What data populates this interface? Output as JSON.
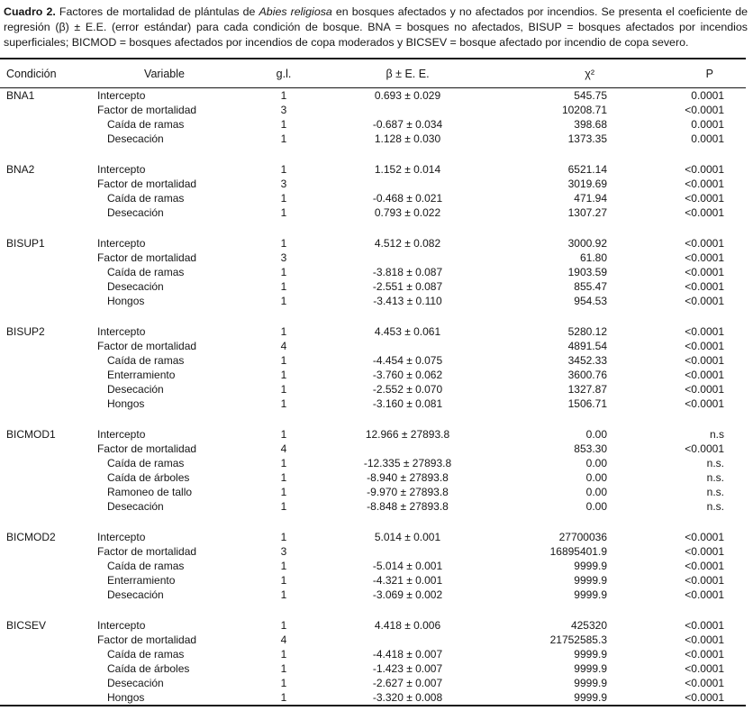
{
  "caption": {
    "segments": [
      {
        "text": "Cuadro 2.",
        "style": "bold"
      },
      {
        "text": " Factores de mortalidad de plántulas de ",
        "style": "normal"
      },
      {
        "text": "Abies religiosa",
        "style": "italic"
      },
      {
        "text": " en bosques afectados y no afectados por incendios. Se presenta el coeficiente de regresión (β) ± E.E. (error estándar) para cada condición de bosque. BNA = bosques no afectados, BISUP = bosques afectados por incendios superficiales; BICMOD = bosques afectados por incendios de copa moderados y BICSEV = bosque afectado por incendio de copa severo.",
        "style": "normal"
      }
    ]
  },
  "table": {
    "headers": [
      "Condición",
      "Variable",
      "g.l.",
      "β ± E. E.",
      "χ²",
      "P"
    ],
    "sections": [
      {
        "condition": "BNA1",
        "rows": [
          {
            "variable": "Intercepto",
            "indent": 0,
            "gl": "1",
            "beta": "0.693 ± 0.029",
            "chi2": "545.75",
            "p": "0.0001"
          },
          {
            "variable": "Factor de mortalidad",
            "indent": 0,
            "gl": "3",
            "beta": "",
            "chi2": "10208.71",
            "p": "<0.0001"
          },
          {
            "variable": "Caída de ramas",
            "indent": 1,
            "gl": "1",
            "beta": "-0.687 ± 0.034",
            "chi2": "398.68",
            "p": "0.0001"
          },
          {
            "variable": "Desecación",
            "indent": 1,
            "gl": "1",
            "beta": "1.128 ± 0.030",
            "chi2": "1373.35",
            "p": "0.0001"
          }
        ]
      },
      {
        "condition": "BNA2",
        "rows": [
          {
            "variable": "Intercepto",
            "indent": 0,
            "gl": "1",
            "beta": "1.152 ± 0.014",
            "chi2": "6521.14",
            "p": "<0.0001"
          },
          {
            "variable": "Factor de mortalidad",
            "indent": 0,
            "gl": "3",
            "beta": "",
            "chi2": "3019.69",
            "p": "<0.0001"
          },
          {
            "variable": "Caída de ramas",
            "indent": 1,
            "gl": "1",
            "beta": "-0.468 ± 0.021",
            "chi2": "471.94",
            "p": "<0.0001"
          },
          {
            "variable": "Desecación",
            "indent": 1,
            "gl": "1",
            "beta": "0.793 ± 0.022",
            "chi2": "1307.27",
            "p": "<0.0001"
          }
        ]
      },
      {
        "condition": "BISUP1",
        "rows": [
          {
            "variable": "Intercepto",
            "indent": 0,
            "gl": "1",
            "beta": "4.512 ± 0.082",
            "chi2": "3000.92",
            "p": "<0.0001"
          },
          {
            "variable": "Factor de mortalidad",
            "indent": 0,
            "gl": "3",
            "beta": "",
            "chi2": "61.80",
            "p": "<0.0001"
          },
          {
            "variable": "Caída de ramas",
            "indent": 1,
            "gl": "1",
            "beta": "-3.818 ± 0.087",
            "chi2": "1903.59",
            "p": "<0.0001"
          },
          {
            "variable": "Desecación",
            "indent": 1,
            "gl": "1",
            "beta": "-2.551 ± 0.087",
            "chi2": "855.47",
            "p": "<0.0001"
          },
          {
            "variable": "Hongos",
            "indent": 1,
            "gl": "1",
            "beta": "-3.413 ± 0.110",
            "chi2": "954.53",
            "p": "<0.0001"
          }
        ]
      },
      {
        "condition": "BISUP2",
        "rows": [
          {
            "variable": "Intercepto",
            "indent": 0,
            "gl": "1",
            "beta": "4.453 ± 0.061",
            "chi2": "5280.12",
            "p": "<0.0001"
          },
          {
            "variable": "Factor de mortalidad",
            "indent": 0,
            "gl": "4",
            "beta": "",
            "chi2": "4891.54",
            "p": "<0.0001"
          },
          {
            "variable": "Caída de ramas",
            "indent": 1,
            "gl": "1",
            "beta": "-4.454 ± 0.075",
            "chi2": "3452.33",
            "p": "<0.0001"
          },
          {
            "variable": "Enterramiento",
            "indent": 1,
            "gl": "1",
            "beta": "-3.760 ± 0.062",
            "chi2": "3600.76",
            "p": "<0.0001"
          },
          {
            "variable": "Desecación",
            "indent": 1,
            "gl": "1",
            "beta": "-2.552 ± 0.070",
            "chi2": "1327.87",
            "p": "<0.0001"
          },
          {
            "variable": "Hongos",
            "indent": 1,
            "gl": "1",
            "beta": "-3.160 ± 0.081",
            "chi2": "1506.71",
            "p": "<0.0001"
          }
        ]
      },
      {
        "condition": "BICMOD1",
        "rows": [
          {
            "variable": "Intercepto",
            "indent": 0,
            "gl": "1",
            "beta": "12.966 ± 27893.8",
            "chi2": "0.00",
            "p": "n.s"
          },
          {
            "variable": "Factor de mortalidad",
            "indent": 0,
            "gl": "4",
            "beta": "",
            "chi2": "853.30",
            "p": "<0.0001"
          },
          {
            "variable": "Caída de ramas",
            "indent": 1,
            "gl": "1",
            "beta": "-12.335 ± 27893.8",
            "chi2": "0.00",
            "p": "n.s."
          },
          {
            "variable": "Caída de árboles",
            "indent": 1,
            "gl": "1",
            "beta": "-8.940 ± 27893.8",
            "chi2": "0.00",
            "p": "n.s."
          },
          {
            "variable": "Ramoneo de tallo",
            "indent": 1,
            "gl": "1",
            "beta": "-9.970 ± 27893.8",
            "chi2": "0.00",
            "p": "n.s."
          },
          {
            "variable": "Desecación",
            "indent": 1,
            "gl": "1",
            "beta": "-8.848 ± 27893.8",
            "chi2": "0.00",
            "p": "n.s."
          }
        ]
      },
      {
        "condition": "BICMOD2",
        "rows": [
          {
            "variable": "Intercepto",
            "indent": 0,
            "gl": "1",
            "beta": "5.014 ± 0.001",
            "chi2": "27700036",
            "p": "<0.0001"
          },
          {
            "variable": "Factor de mortalidad",
            "indent": 0,
            "gl": "3",
            "beta": "",
            "chi2": "16895401.9",
            "p": "<0.0001"
          },
          {
            "variable": "Caída de ramas",
            "indent": 1,
            "gl": "1",
            "beta": "-5.014 ± 0.001",
            "chi2": "9999.9",
            "p": "<0.0001"
          },
          {
            "variable": "Enterramiento",
            "indent": 1,
            "gl": "1",
            "beta": "-4.321 ± 0.001",
            "chi2": "9999.9",
            "p": "<0.0001"
          },
          {
            "variable": "Desecación",
            "indent": 1,
            "gl": "1",
            "beta": "-3.069 ± 0.002",
            "chi2": "9999.9",
            "p": "<0.0001"
          }
        ]
      },
      {
        "condition": "BICSEV",
        "rows": [
          {
            "variable": "Intercepto",
            "indent": 0,
            "gl": "1",
            "beta": "4.418 ± 0.006",
            "chi2": "425320",
            "p": "<0.0001"
          },
          {
            "variable": "Factor de mortalidad",
            "indent": 0,
            "gl": "4",
            "beta": "",
            "chi2": "21752585.3",
            "p": "<0.0001"
          },
          {
            "variable": "Caída de ramas",
            "indent": 1,
            "gl": "1",
            "beta": "-4.418 ± 0.007",
            "chi2": "9999.9",
            "p": "<0.0001"
          },
          {
            "variable": "Caída de árboles",
            "indent": 1,
            "gl": "1",
            "beta": "-1.423 ± 0.007",
            "chi2": "9999.9",
            "p": "<0.0001"
          },
          {
            "variable": "Desecación",
            "indent": 1,
            "gl": "1",
            "beta": "-2.627 ± 0.007",
            "chi2": "9999.9",
            "p": "<0.0001"
          },
          {
            "variable": "Hongos",
            "indent": 1,
            "gl": "1",
            "beta": "-3.320 ± 0.008",
            "chi2": "9999.9",
            "p": "<0.0001"
          }
        ]
      }
    ]
  }
}
